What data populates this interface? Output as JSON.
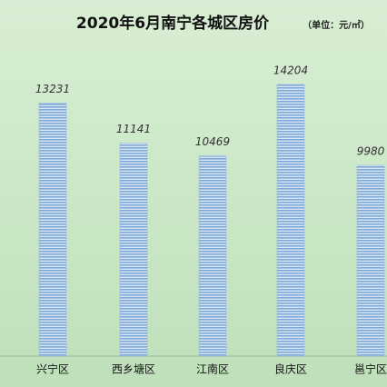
{
  "chart_data": {
    "type": "bar",
    "title": "2020年6月南宁各城区房价",
    "subtitle": "（单位：元/㎡）",
    "categories": [
      "兴宁区",
      "西乡塘区",
      "江南区",
      "良庆区",
      "邕宁区"
    ],
    "values": [
      13231,
      11141,
      10469,
      14204,
      9980
    ],
    "color": "#8fb4de"
  }
}
